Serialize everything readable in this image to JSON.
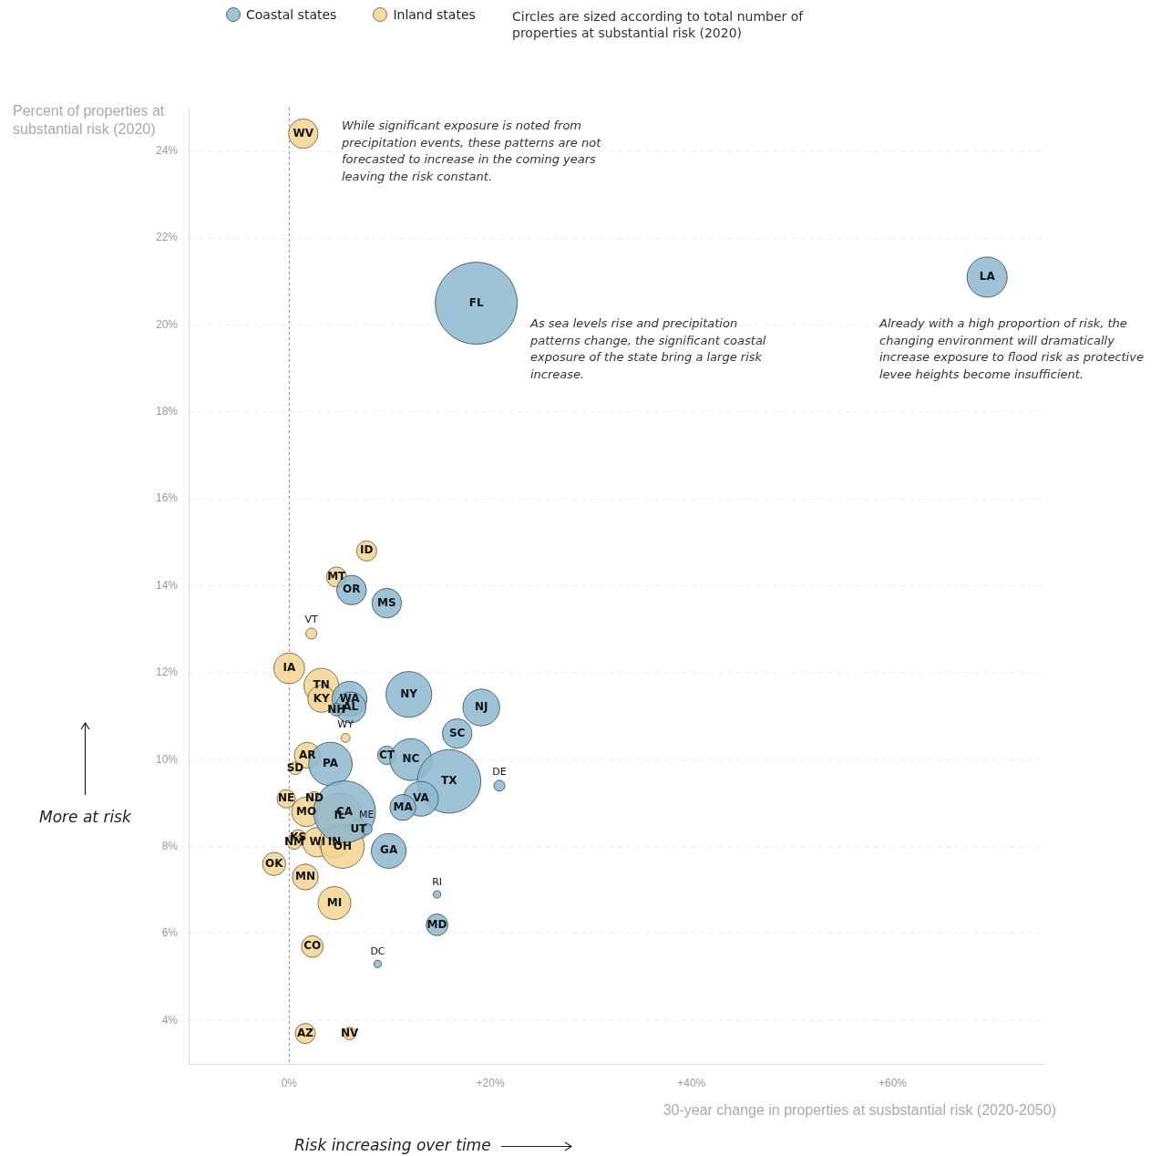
{
  "chart_data": {
    "type": "bubble",
    "xlabel": "30-year change in properties at susbstantial risk (2020-2050)",
    "ylabel": "Percent of properties at substantial risk (2020)",
    "xlim": [
      -10,
      75
    ],
    "ylim": [
      3,
      25
    ],
    "xticks": [
      {
        "value": 0,
        "label": "0%"
      },
      {
        "value": 20,
        "label": "+20%"
      },
      {
        "value": 40,
        "label": "+40%"
      },
      {
        "value": 60,
        "label": "+60%"
      }
    ],
    "yticks": [
      {
        "value": 4,
        "label": "4%"
      },
      {
        "value": 6,
        "label": "6%"
      },
      {
        "value": 8,
        "label": "8%"
      },
      {
        "value": 10,
        "label": "10%"
      },
      {
        "value": 12,
        "label": "12%"
      },
      {
        "value": 14,
        "label": "14%"
      },
      {
        "value": 16,
        "label": "16%"
      },
      {
        "value": 18,
        "label": "18%"
      },
      {
        "value": 20,
        "label": "20%"
      },
      {
        "value": 22,
        "label": "22%"
      },
      {
        "value": 24,
        "label": "24%"
      }
    ],
    "grid": "y",
    "legend": "top",
    "ref_lines": [
      {
        "axis": "x",
        "value": 0,
        "color": "#888888",
        "line_style": "dashed"
      }
    ],
    "series": [
      {
        "name": "Coastal states",
        "color": "#8db8cf",
        "x": [
          18.6,
          69.4,
          6.2,
          9.7,
          11.9,
          19.1,
          16.7,
          6.0,
          6.1,
          4.7,
          9.7,
          12.1,
          15.9,
          20.9,
          4.1,
          5.5,
          13.1,
          11.3,
          9.9,
          7.7,
          14.7,
          14.7,
          8.8
        ],
        "values": [
          20.5,
          21.1,
          13.9,
          13.6,
          11.5,
          11.2,
          10.6,
          11.4,
          11.2,
          11.15,
          10.1,
          10.0,
          9.5,
          9.4,
          9.9,
          8.8,
          9.1,
          8.9,
          7.9,
          8.4,
          6.9,
          6.2,
          5.3
        ],
        "sizes": [
          1,
          0.24,
          0.13,
          0.13,
          0.31,
          0.2,
          0.13,
          0.18,
          0.14,
          0.024,
          0.05,
          0.26,
          0.6,
          0.018,
          0.28,
          0.57,
          0.18,
          0.1,
          0.18,
          0.018,
          0.008,
          0.07,
          0.008
        ],
        "value_labels": [
          "FL",
          "LA",
          "OR",
          "MS",
          "NY",
          "NJ",
          "SC",
          "WA",
          "AL",
          "NH",
          "CT",
          "NC",
          "TX",
          "DE",
          "PA",
          "CA",
          "VA",
          "MA",
          "GA",
          "ME",
          "RI",
          "MD",
          "DC"
        ]
      },
      {
        "name": "Inland states",
        "color": "#f3d591",
        "x": [
          1.4,
          7.7,
          4.7,
          2.2,
          0,
          3.2,
          3.2,
          5.6,
          1.8,
          0.6,
          -0.3,
          2.5,
          1.7,
          5.0,
          6.9,
          0.9,
          0.5,
          2.8,
          4.5,
          5.3,
          -1.5,
          1.6,
          4.5,
          2.3,
          1.6,
          6.0
        ],
        "values": [
          24.4,
          14.8,
          14.2,
          12.9,
          12.1,
          11.7,
          11.4,
          10.5,
          10.1,
          9.8,
          9.1,
          9.1,
          8.8,
          8.7,
          8.4,
          8.2,
          8.1,
          8.1,
          8.1,
          8.0,
          7.6,
          7.3,
          6.7,
          5.7,
          3.7,
          3.7
        ],
        "sizes": [
          0.13,
          0.06,
          0.06,
          0.018,
          0.14,
          0.18,
          0.11,
          0.012,
          0.1,
          0.024,
          0.05,
          0.03,
          0.13,
          0.31,
          0.06,
          0.04,
          0.03,
          0.13,
          0.14,
          0.28,
          0.08,
          0.1,
          0.16,
          0.07,
          0.06,
          0.024
        ],
        "value_labels": [
          "WV",
          "ID",
          "MT",
          "VT",
          "IA",
          "TN",
          "KY",
          "WY",
          "AR",
          "SD",
          "NE",
          "ND",
          "MO",
          "IL",
          "UT",
          "KS",
          "NM",
          "WI",
          "IN",
          "OH",
          "OK",
          "MN",
          "MI",
          "CO",
          "AZ",
          "NV"
        ]
      }
    ],
    "annotations": [
      "Circles are sized according to total number of properties at substantial risk (2020)",
      "While significant exposure is noted from precipitation events, these patterns are not forecasted to increase in the coming years leaving the risk constant.",
      "As sea levels rise and precipitation patterns change, the significant coastal exposure of the state bring a large risk increase.",
      "Already with a high proportion of risk, the changing environment will dramatically increase exposure to flood risk as protective levee heights become insufficient.",
      "More at risk",
      "Risk increasing over time"
    ]
  }
}
